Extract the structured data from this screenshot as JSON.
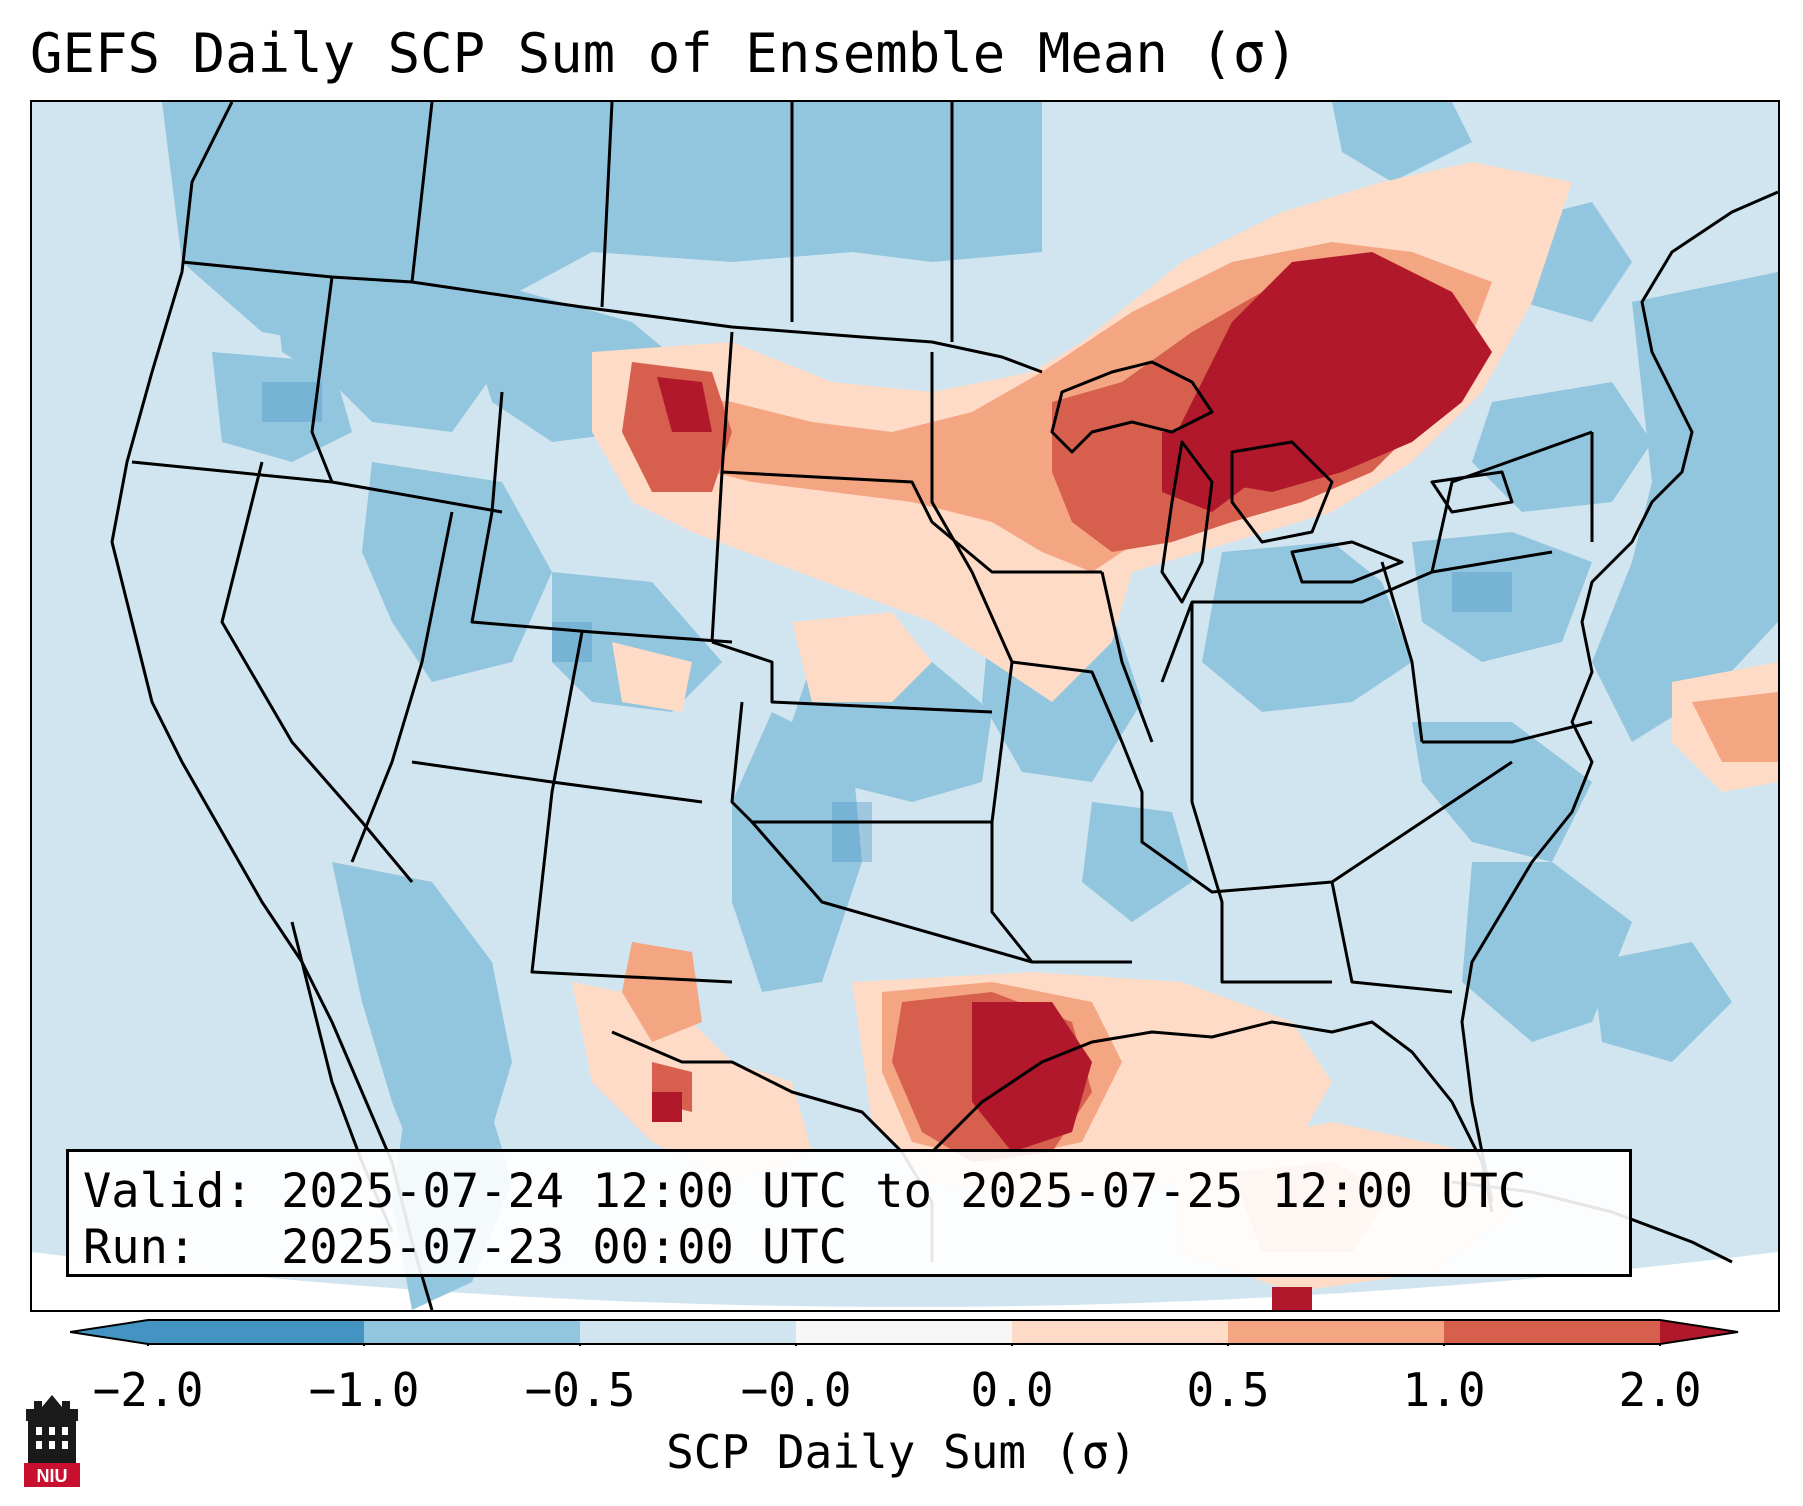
{
  "title": "GEFS Daily SCP Sum of Ensemble Mean (σ)",
  "info": {
    "valid_line": "Valid: 2025-07-24 12:00 UTC to 2025-07-25 12:00 UTC",
    "run_line": "Run:   2025-07-23 00:00 UTC"
  },
  "colorbar": {
    "label": "SCP Daily Sum (σ)",
    "ticks": [
      "−2.0",
      "−1.0",
      "−0.5",
      "−0.0",
      "0.0",
      "0.5",
      "1.0",
      "2.0"
    ],
    "colors": {
      "below_min": "#4393c3",
      "bin_1": "#4393c3",
      "bin_2": "#92c5de",
      "bin_3": "#d1e5f0",
      "bin_4": "#f7f7f7",
      "bin_5": "#fddbc7",
      "bin_6": "#f4a582",
      "bin_7": "#d6604d",
      "above_max": "#b2182b"
    }
  },
  "logo": {
    "text": "NIU",
    "color": "#c8102e"
  },
  "icons": [
    "niu-logo-icon"
  ]
}
